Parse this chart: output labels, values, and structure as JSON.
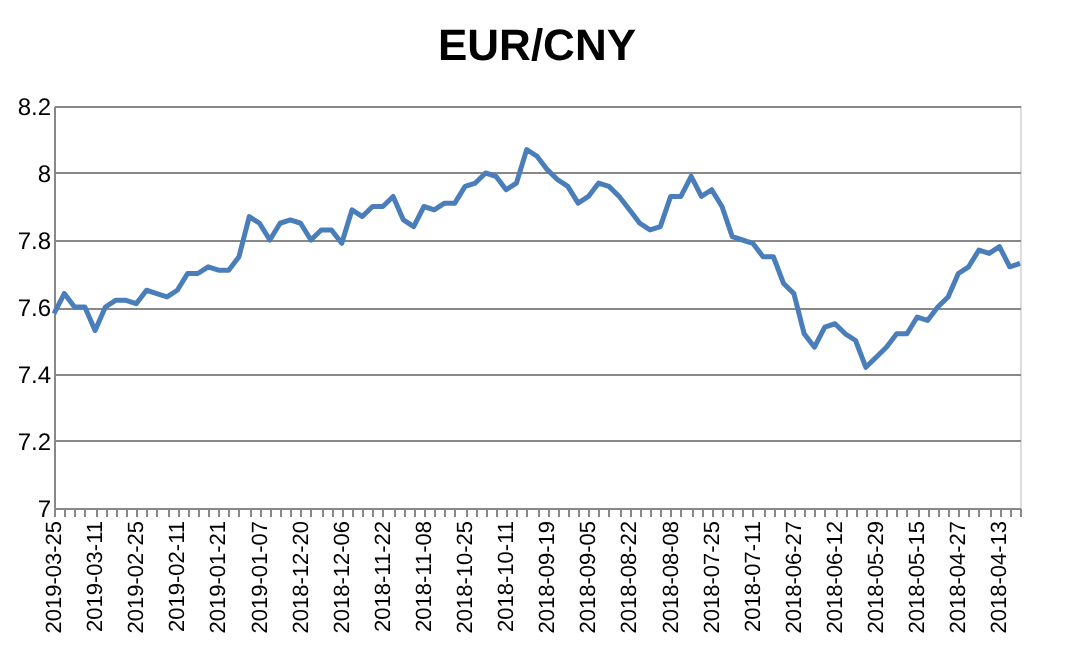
{
  "chart_data": {
    "type": "line",
    "title": "EUR/CNY",
    "categories": [
      "2019-03-25",
      null,
      null,
      null,
      "2019-03-11",
      null,
      null,
      null,
      "2019-02-25",
      null,
      null,
      null,
      "2019-02-11",
      null,
      null,
      null,
      "2019-01-21",
      null,
      null,
      null,
      "2019-01-07",
      null,
      null,
      null,
      "2018-12-20",
      null,
      null,
      null,
      "2018-12-06",
      null,
      null,
      null,
      "2018-11-22",
      null,
      null,
      null,
      "2018-11-08",
      null,
      null,
      null,
      "2018-10-25",
      null,
      null,
      null,
      "2018-10-11",
      null,
      null,
      null,
      "2018-09-19",
      null,
      null,
      null,
      "2018-09-05",
      null,
      null,
      null,
      "2018-08-22",
      null,
      null,
      null,
      "2018-08-08",
      null,
      null,
      null,
      "2018-07-25",
      null,
      null,
      null,
      "2018-07-11",
      null,
      null,
      null,
      "2018-06-27",
      null,
      null,
      null,
      "2018-06-12",
      null,
      null,
      null,
      "2018-05-29",
      null,
      null,
      null,
      "2018-05-15",
      null,
      null,
      null,
      "2018-04-27",
      null,
      null,
      null,
      "2018-04-13",
      null,
      null
    ],
    "series": [
      {
        "color": "#4a7ebb",
        "values": [
          7.58,
          7.64,
          7.6,
          7.6,
          7.53,
          7.6,
          7.62,
          7.62,
          7.61,
          7.65,
          7.64,
          7.63,
          7.65,
          7.7,
          7.7,
          7.72,
          7.71,
          7.71,
          7.75,
          7.87,
          7.85,
          7.8,
          7.85,
          7.86,
          7.85,
          7.8,
          7.83,
          7.83,
          7.79,
          7.89,
          7.87,
          7.9,
          7.9,
          7.93,
          7.86,
          7.84,
          7.9,
          7.89,
          7.91,
          7.91,
          7.96,
          7.97,
          8.0,
          7.99,
          7.95,
          7.97,
          8.07,
          8.05,
          8.01,
          7.98,
          7.96,
          7.91,
          7.93,
          7.97,
          7.96,
          7.93,
          7.89,
          7.85,
          7.83,
          7.84,
          7.93,
          7.93,
          7.99,
          7.93,
          7.95,
          7.9,
          7.81,
          7.8,
          7.79,
          7.75,
          7.75,
          7.67,
          7.64,
          7.52,
          7.48,
          7.54,
          7.55,
          7.52,
          7.5,
          7.42,
          7.45,
          7.48,
          7.52,
          7.52,
          7.57,
          7.56,
          7.6,
          7.63,
          7.7,
          7.72,
          7.77,
          7.76,
          7.78,
          7.72,
          7.73
        ]
      }
    ],
    "ylim": [
      7,
      8.2
    ],
    "yticks": [
      7,
      7.2,
      7.4,
      7.6,
      7.8,
      8,
      8.2
    ],
    "grid": "y",
    "legend": false
  }
}
